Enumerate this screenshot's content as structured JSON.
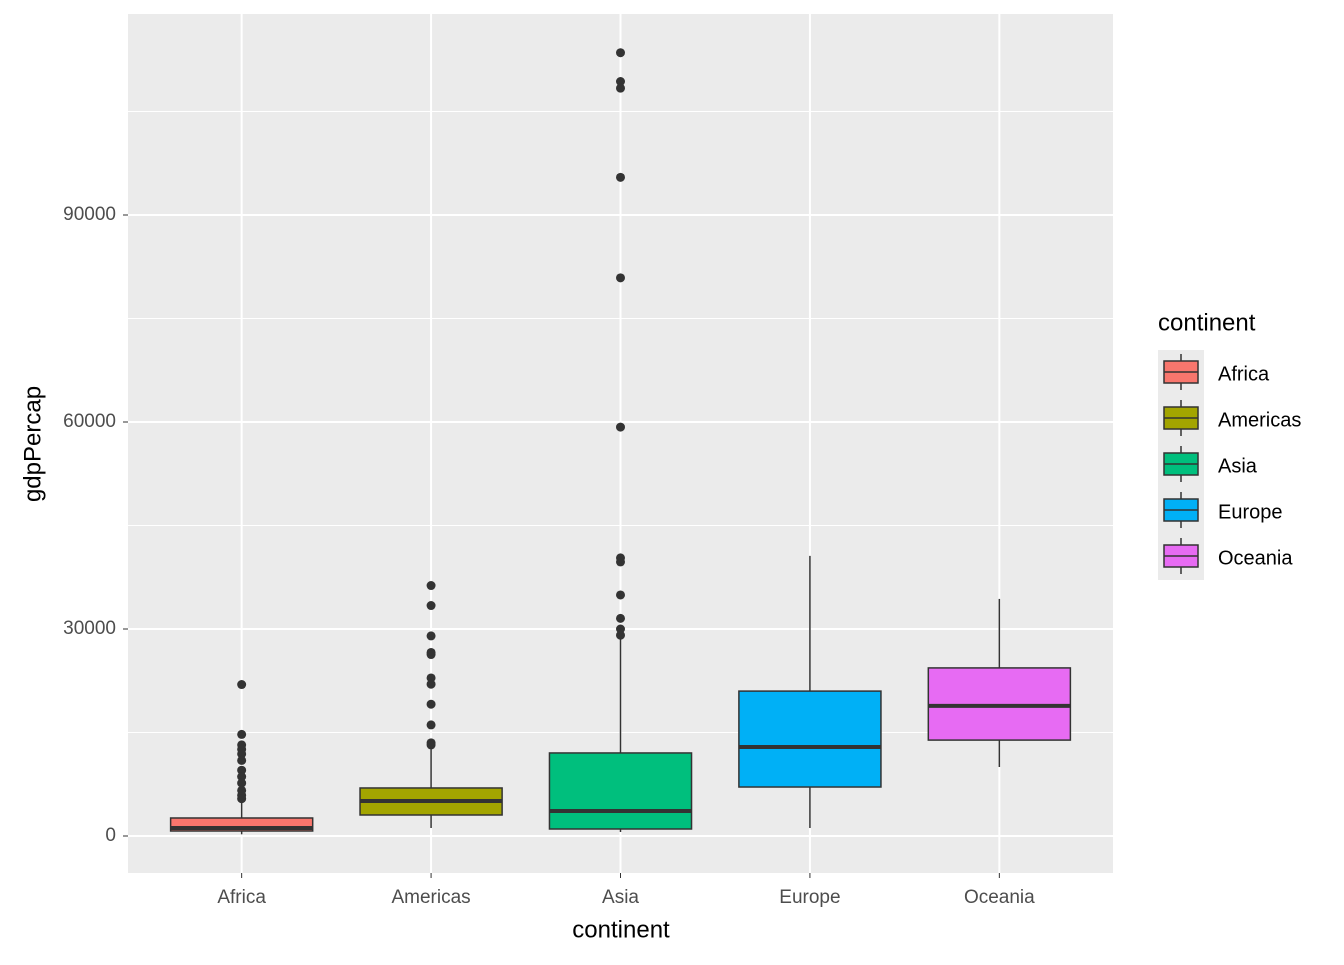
{
  "chart_data": {
    "type": "box",
    "x_label": "continent",
    "y_label": "gdpPercap",
    "legend_title": "continent",
    "categories": [
      "Africa",
      "Americas",
      "Asia",
      "Europe",
      "Oceania"
    ],
    "colors": [
      "#f8766d",
      "#a3a500",
      "#00bf7d",
      "#00b0f6",
      "#e76bf3"
    ],
    "boxes": [
      {
        "min": 240,
        "q1": 725,
        "median": 1160,
        "q3": 2610,
        "max": 5200,
        "outliers": [
          21951,
          14723,
          13206,
          12570,
          11888,
          10956,
          9534,
          8605,
          7670,
          6600,
          5900,
          5400
        ]
      },
      {
        "min": 1160,
        "q1": 3045,
        "median": 5075,
        "q3": 6960,
        "max": 12800,
        "outliers": [
          36300,
          33400,
          29000,
          26600,
          26300,
          22900,
          22000,
          19100,
          16100,
          13500,
          13200
        ]
      },
      {
        "min": 580,
        "q1": 1015,
        "median": 3625,
        "q3": 12035,
        "max": 28860,
        "outliers": [
          113523,
          109348,
          108382,
          95458,
          80894,
          59265,
          40300,
          39724,
          34932,
          31540,
          30000,
          29100
        ]
      },
      {
        "min": 1160,
        "q1": 7100,
        "median": 12900,
        "q3": 21000,
        "max": 40600,
        "outliers": []
      },
      {
        "min": 10000,
        "q1": 13900,
        "median": 18850,
        "q3": 24360,
        "max": 34360,
        "outliers": []
      }
    ],
    "ylim": [
      -5362,
      119130
    ],
    "yticks": [
      0,
      30000,
      60000,
      90000
    ],
    "yminorticks": [
      15000,
      45000,
      75000,
      105000
    ],
    "grid": true
  }
}
